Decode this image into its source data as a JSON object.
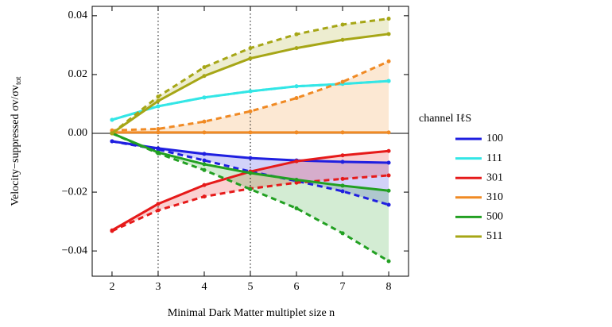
{
  "chart_data": {
    "type": "line",
    "xlabel": "Minimal Dark Matter multiplet size n",
    "ylabel": "Velocity−suppressed σv/σv",
    "ylabel_sub": "tot",
    "legend_title": "channel IℓS",
    "legend_position": "right",
    "x": [
      2,
      3,
      4,
      5,
      6,
      7,
      8
    ],
    "xlim": [
      1.57,
      8.43
    ],
    "xticks": [
      2,
      3,
      4,
      5,
      6,
      7,
      8
    ],
    "ylim": [
      -0.0486,
      0.0432
    ],
    "yticks": [
      {
        "value": -0.04,
        "label": "−0.04"
      },
      {
        "value": -0.02,
        "label": "−0.02"
      },
      {
        "value": 0,
        "label": "0.00"
      },
      {
        "value": 0.02,
        "label": "0.02"
      },
      {
        "value": 0.04,
        "label": "0.04"
      }
    ],
    "vlines": [
      3,
      5
    ],
    "series": [
      {
        "name": "100",
        "color": "#1f1fe0",
        "values": [
          -0.0027,
          -0.0051,
          -0.007,
          -0.0084,
          -0.0092,
          -0.0097,
          -0.01
        ],
        "dashed": [
          -0.0027,
          -0.0055,
          -0.0092,
          -0.013,
          -0.0162,
          -0.0197,
          -0.0243
        ]
      },
      {
        "name": "111",
        "color": "#33e6e6",
        "values": [
          0.0046,
          0.0092,
          0.0122,
          0.0143,
          0.016,
          0.0168,
          0.0178
        ],
        "dashed": [
          0.0046,
          0.0092,
          0.0122,
          0.0143,
          0.016,
          0.0168,
          0.0178
        ]
      },
      {
        "name": "301",
        "color": "#e61a1a",
        "values": [
          -0.033,
          -0.024,
          -0.0176,
          -0.013,
          -0.0095,
          -0.0075,
          -0.006
        ],
        "dashed": [
          -0.0332,
          -0.0262,
          -0.0215,
          -0.0188,
          -0.0168,
          -0.0155,
          -0.0143
        ]
      },
      {
        "name": "310",
        "color": "#f08a24",
        "values": [
          0.0003,
          0.0003,
          0.0003,
          0.0003,
          0.0003,
          0.0003,
          0.0003
        ],
        "dashed": [
          0.001,
          0.0015,
          0.004,
          0.0075,
          0.012,
          0.0175,
          0.0245
        ]
      },
      {
        "name": "500",
        "color": "#22a022",
        "values": [
          0,
          -0.0065,
          -0.0105,
          -0.0135,
          -0.0158,
          -0.0178,
          -0.0195
        ],
        "dashed": [
          0,
          -0.0068,
          -0.0125,
          -0.019,
          -0.0255,
          -0.034,
          -0.0435
        ]
      },
      {
        "name": "511",
        "color": "#a6a616",
        "values": [
          0,
          0.011,
          0.0195,
          0.0255,
          0.029,
          0.0318,
          0.0338
        ],
        "dashed": [
          0,
          0.0125,
          0.0225,
          0.029,
          0.0337,
          0.037,
          0.039
        ]
      }
    ]
  }
}
